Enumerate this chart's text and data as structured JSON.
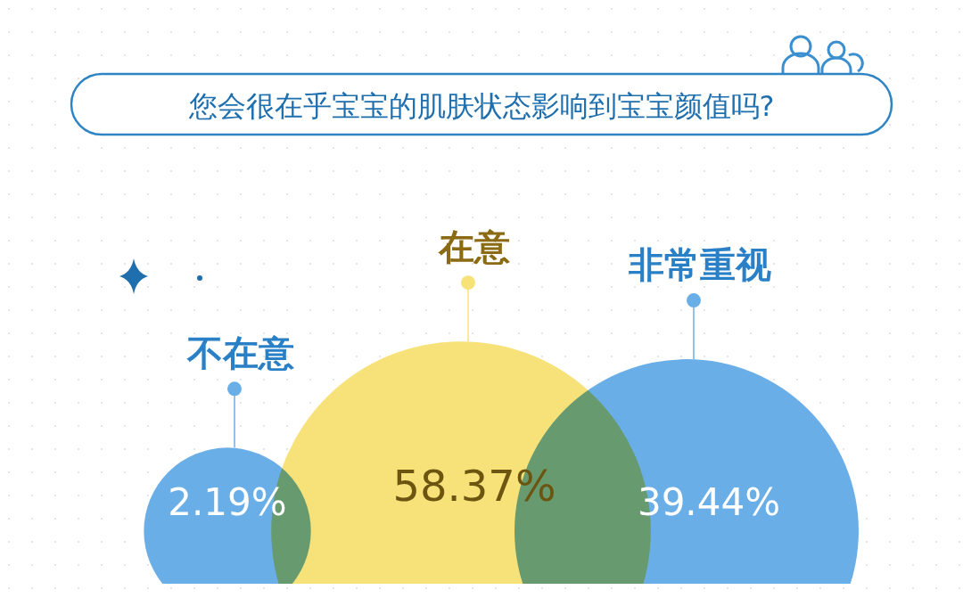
{
  "chart_data": {
    "type": "other",
    "title": "您会很在乎宝宝的肌肤状态影响到宝宝颜值吗?",
    "categories": [
      "不在意",
      "在意",
      "非常重视"
    ],
    "values": [
      2.19,
      58.37,
      39.44
    ],
    "value_labels": [
      "2.19%",
      "58.37%",
      "39.44%"
    ],
    "colors": [
      "#6aaee8",
      "#f7e27a",
      "#6aaee8"
    ]
  }
}
